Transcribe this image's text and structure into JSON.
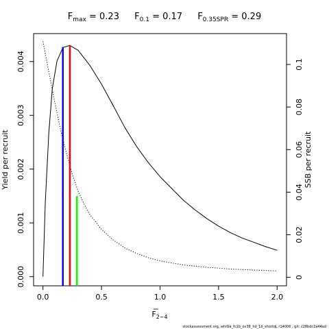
{
  "chart_data": {
    "type": "line",
    "title": {
      "fmax": {
        "base": "F",
        "sub": "max",
        "value": " = 0.23"
      },
      "f01": {
        "base": "F",
        "sub": "0.1",
        "value": " = 0.17"
      },
      "fspr": {
        "base": "F",
        "sub": "0.35SPR",
        "value": " = 0.29"
      }
    },
    "xlabel": {
      "base": "F",
      "sub": "2−4"
    },
    "ylabel_left": "Yield per recruit",
    "ylabel_right": "SSB per recruit",
    "xlim": [
      -0.08,
      2.08
    ],
    "ylim_left": [
      -0.00017,
      0.00452
    ],
    "ylim_right": [
      -0.004,
      0.1145
    ],
    "x_ticks": [
      "0.0",
      "0.5",
      "1.0",
      "1.5",
      "2.0"
    ],
    "x_tick_values": [
      0,
      0.5,
      1.0,
      1.5,
      2.0
    ],
    "y_ticks_left": [
      "0.000",
      "0.001",
      "0.002",
      "0.003",
      "0.004"
    ],
    "y_tick_values_left": [
      0,
      0.001,
      0.002,
      0.003,
      0.004
    ],
    "y_ticks_right": [
      "0",
      "0.02",
      "0.04",
      "0.06",
      "0.08",
      "0.1"
    ],
    "y_tick_values_right": [
      0,
      0.02,
      0.04,
      0.06,
      0.08,
      0.1
    ],
    "series": [
      {
        "axis": "left",
        "style": "solid",
        "color": "#000000",
        "x": [
          0,
          0.02,
          0.05,
          0.08,
          0.12,
          0.17,
          0.23,
          0.3,
          0.4,
          0.5,
          0.6,
          0.7,
          0.8,
          0.9,
          1.0,
          1.1,
          1.2,
          1.3,
          1.4,
          1.5,
          1.6,
          1.7,
          1.8,
          1.9,
          2.0
        ],
        "y": [
          0,
          0.00138,
          0.00267,
          0.0035,
          0.00401,
          0.00426,
          0.0043,
          0.00421,
          0.00393,
          0.00358,
          0.00318,
          0.00277,
          0.00242,
          0.00212,
          0.00186,
          0.00164,
          0.00142,
          0.00124,
          0.00108,
          0.00094,
          0.00082,
          0.00072,
          0.00064,
          0.00056,
          0.00049
        ]
      },
      {
        "axis": "right",
        "style": "dotted",
        "color": "#000000",
        "x": [
          0,
          0.05,
          0.1,
          0.15,
          0.2,
          0.25,
          0.3,
          0.35,
          0.4,
          0.5,
          0.6,
          0.7,
          0.8,
          0.9,
          1.0,
          1.2,
          1.4,
          1.6,
          1.8,
          2.0
        ],
        "y": [
          0.1108,
          0.0965,
          0.0825,
          0.0695,
          0.0585,
          0.0485,
          0.0405,
          0.0345,
          0.0295,
          0.0225,
          0.0175,
          0.0138,
          0.0112,
          0.0092,
          0.0077,
          0.0058,
          0.0047,
          0.0039,
          0.0034,
          0.003
        ]
      }
    ],
    "reference_lines": [
      {
        "name": "F0.1",
        "x": 0.17,
        "axis": "left",
        "y": 0.00427,
        "color": "#0000ff"
      },
      {
        "name": "Fmax",
        "x": 0.23,
        "axis": "left",
        "y": 0.0043,
        "color": "#ff0000"
      },
      {
        "name": "F0.35SPR",
        "x": 0.29,
        "axis": "right",
        "y": 0.0382,
        "color": "#00ff00"
      }
    ],
    "grid": false,
    "legend": "none"
  },
  "footer_text": "stockassessment.org,  whiGa_fc1b_ov38_hd_1b_shortqL  r14006 ,  git: c28bdc2a44ad"
}
